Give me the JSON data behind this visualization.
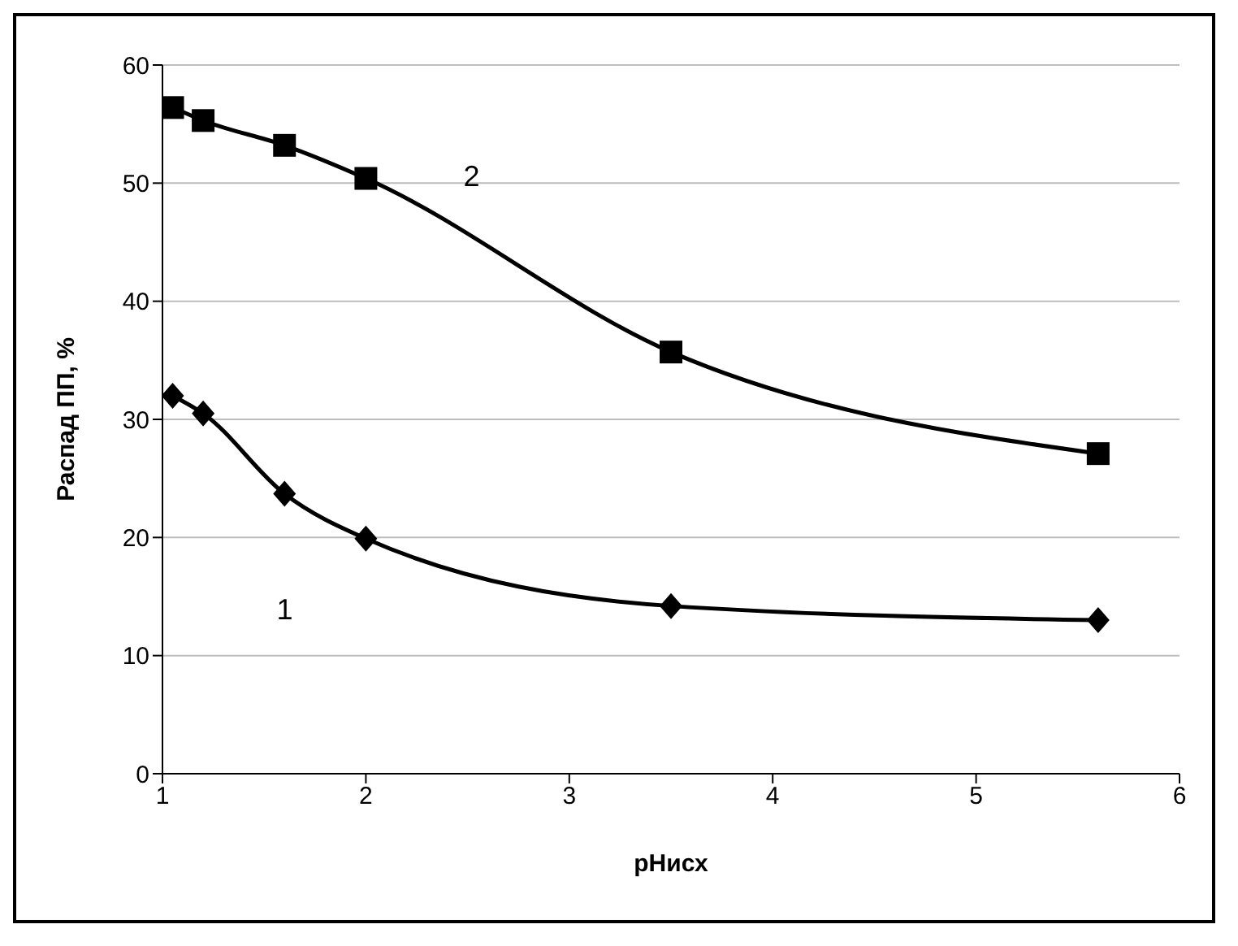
{
  "chart_data": {
    "type": "line",
    "xlabel": "pHисх",
    "ylabel": "Распад ПП, %",
    "xlim": [
      1,
      6
    ],
    "xticks": [
      1,
      2,
      3,
      4,
      5,
      6
    ],
    "ylim": [
      0,
      60
    ],
    "yticks": [
      0,
      10,
      20,
      30,
      40,
      50,
      60
    ],
    "grid": "y",
    "legend": false,
    "series": [
      {
        "name": "1",
        "color": "#000000",
        "marker": "diamond",
        "x": [
          1.05,
          1.2,
          1.6,
          2.0,
          3.5,
          5.6
        ],
        "values": [
          32,
          30.5,
          23.7,
          19.9,
          14.2,
          13.0
        ]
      },
      {
        "name": "2",
        "color": "#000000",
        "marker": "square",
        "x": [
          1.05,
          1.2,
          1.6,
          2.0,
          3.5,
          5.6
        ],
        "values": [
          56.4,
          55.3,
          53.2,
          50.4,
          35.7,
          27.1
        ]
      }
    ]
  }
}
